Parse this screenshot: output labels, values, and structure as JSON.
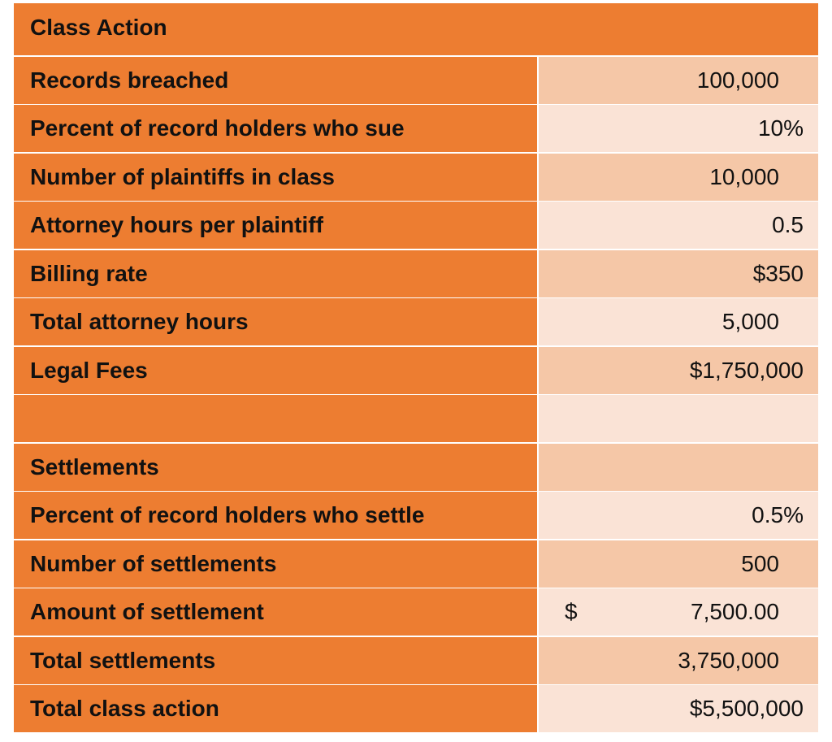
{
  "header": {
    "title": "Class Action"
  },
  "rows": [
    {
      "label": "Records breached",
      "value": "100,000"
    },
    {
      "label": "Percent of record holders who sue",
      "value": "10%"
    },
    {
      "label": "Number of plaintiffs in class",
      "value": "10,000"
    },
    {
      "label": "Attorney hours per plaintiff",
      "value": "0.5"
    },
    {
      "label": "Billing rate",
      "value": "$350"
    },
    {
      "label": "Total attorney hours",
      "value": "5,000"
    },
    {
      "label": "Legal Fees",
      "value": "$1,750,000"
    },
    {
      "label": "",
      "value": ""
    },
    {
      "label": "Settlements",
      "value": ""
    },
    {
      "label": "Percent of record holders who settle",
      "value": "0.5%"
    },
    {
      "label": "Number of settlements",
      "value": "500"
    },
    {
      "label": "Amount of settlement",
      "currency": "$",
      "value": "7,500.00"
    },
    {
      "label": "Total settlements",
      "value": "3,750,000"
    },
    {
      "label": "Total class action",
      "value": "$5,500,000"
    }
  ],
  "colors": {
    "label_bg": "#ED7D31",
    "value_bg_dark": "#F5C7A7",
    "value_bg_light": "#FAE3D6"
  }
}
